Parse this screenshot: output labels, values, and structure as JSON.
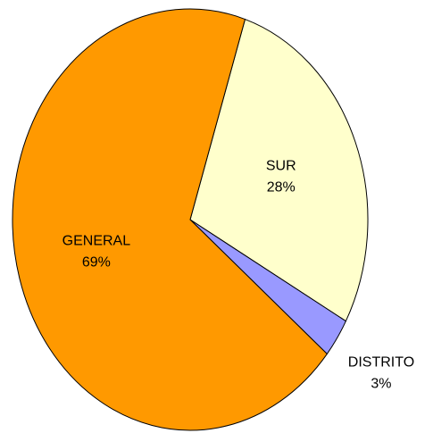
{
  "chart_data": {
    "type": "pie",
    "categories": [
      "SUR",
      "DISTRITO",
      "GENERAL"
    ],
    "values": [
      28,
      3,
      69
    ],
    "value_labels": [
      "28%",
      "3%",
      "69%"
    ],
    "colors": [
      "#ffffcc",
      "#9999ff",
      "#ff9900"
    ]
  }
}
